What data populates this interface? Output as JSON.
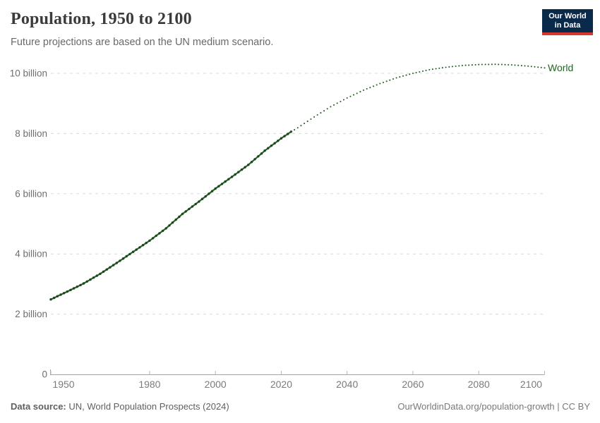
{
  "header": {
    "title": "Population, 1950 to 2100",
    "subtitle": "Future projections are based on the UN medium scenario.",
    "logo": {
      "line1": "Our World",
      "line2": "in Data",
      "background_color": "#0a2a4c",
      "accent_bar_color": "#d5382e"
    }
  },
  "chart_data": {
    "type": "line",
    "title": "Population, 1950 to 2100",
    "xlabel": "",
    "ylabel": "",
    "grid": true,
    "xlim": [
      1950,
      2100
    ],
    "ylim": [
      0,
      10.45
    ],
    "x_ticks": [
      1950,
      1980,
      2000,
      2020,
      2040,
      2060,
      2080,
      2100
    ],
    "y_ticks": [
      {
        "value": 0,
        "label": "0"
      },
      {
        "value": 2,
        "label": "2 billion"
      },
      {
        "value": 4,
        "label": "4 billion"
      },
      {
        "value": 6,
        "label": "6 billion"
      },
      {
        "value": 8,
        "label": "8 billion"
      },
      {
        "value": 10,
        "label": "10 billion"
      }
    ],
    "series": [
      {
        "name": "World",
        "color": "#256325",
        "line_color": "#2b632b",
        "dot_color": "#1b471b",
        "historical": {
          "x": [
            1950,
            1955,
            1960,
            1965,
            1970,
            1975,
            1980,
            1985,
            1990,
            1995,
            2000,
            2005,
            2010,
            2015,
            2020,
            2023
          ],
          "y": [
            2.49,
            2.75,
            3.02,
            3.34,
            3.7,
            4.07,
            4.44,
            4.85,
            5.33,
            5.74,
            6.17,
            6.56,
            6.96,
            7.43,
            7.84,
            8.06
          ]
        },
        "projection": {
          "x": [
            2023,
            2025,
            2030,
            2035,
            2040,
            2045,
            2050,
            2055,
            2060,
            2065,
            2070,
            2075,
            2080,
            2085,
            2090,
            2095,
            2100
          ],
          "y": [
            8.06,
            8.19,
            8.55,
            8.89,
            9.18,
            9.44,
            9.66,
            9.85,
            10.0,
            10.12,
            10.2,
            10.26,
            10.29,
            10.3,
            10.28,
            10.24,
            10.18
          ]
        }
      }
    ],
    "legend_entries": [
      "World"
    ],
    "legend_position": "end-of-line",
    "axis_color": "#a3a3a3",
    "gridline_color": "#dadada"
  },
  "footer": {
    "datasource_label": "Data source:",
    "datasource_value": " UN, World Population Prospects (2024)",
    "link": "OurWorldinData.org/population-growth | CC BY"
  }
}
